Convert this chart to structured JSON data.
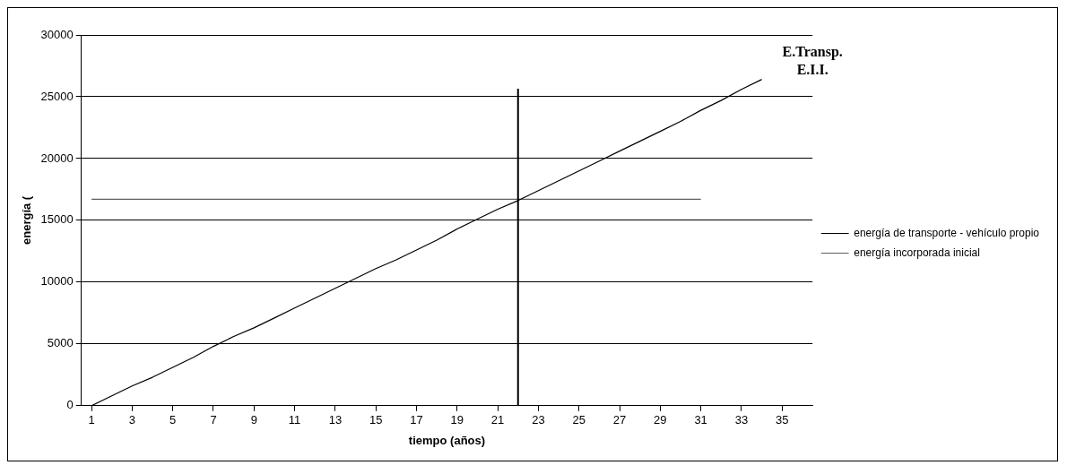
{
  "chart_data": {
    "type": "line",
    "xlabel": "tiempo (años)",
    "ylabel": "energía (",
    "series": [
      {
        "name": "energía de transporte - vehículo propio",
        "color": "#000000",
        "x": [
          1,
          2,
          3,
          4,
          5,
          6,
          7,
          8,
          9,
          10,
          11,
          12,
          13,
          14,
          15,
          16,
          17,
          18,
          19,
          20,
          21,
          22,
          23,
          24,
          25,
          26,
          27,
          28,
          29,
          30,
          31,
          32,
          33,
          34
        ],
        "values": [
          0,
          800,
          1600,
          2300,
          3100,
          3900,
          4800,
          5600,
          6300,
          7100,
          7900,
          8700,
          9500,
          10300,
          11100,
          11800,
          12600,
          13400,
          14300,
          15100,
          15900,
          16600,
          17400,
          18200,
          19000,
          19800,
          20600,
          21400,
          22200,
          23000,
          23900,
          24700,
          25600,
          26400
        ]
      },
      {
        "name": "energía incorporada inicial",
        "color": "#606060",
        "x": [
          1,
          31
        ],
        "values": [
          16700,
          16700
        ]
      }
    ],
    "xlim": [
      0.5,
      36.5
    ],
    "xticks": [
      1,
      3,
      5,
      7,
      9,
      11,
      13,
      15,
      17,
      19,
      21,
      23,
      25,
      27,
      29,
      31,
      33,
      35
    ],
    "ylim": [
      0,
      30000
    ],
    "yticks": [
      0,
      5000,
      10000,
      15000,
      20000,
      25000,
      30000
    ],
    "ref_lines": [
      {
        "axis": "x",
        "value": 22,
        "color": "#000000"
      }
    ],
    "annotations": [
      "E.Transp.",
      "E.I.I."
    ],
    "grid": "y",
    "legend": "right",
    "line_style": "solid",
    "marker": "none"
  }
}
